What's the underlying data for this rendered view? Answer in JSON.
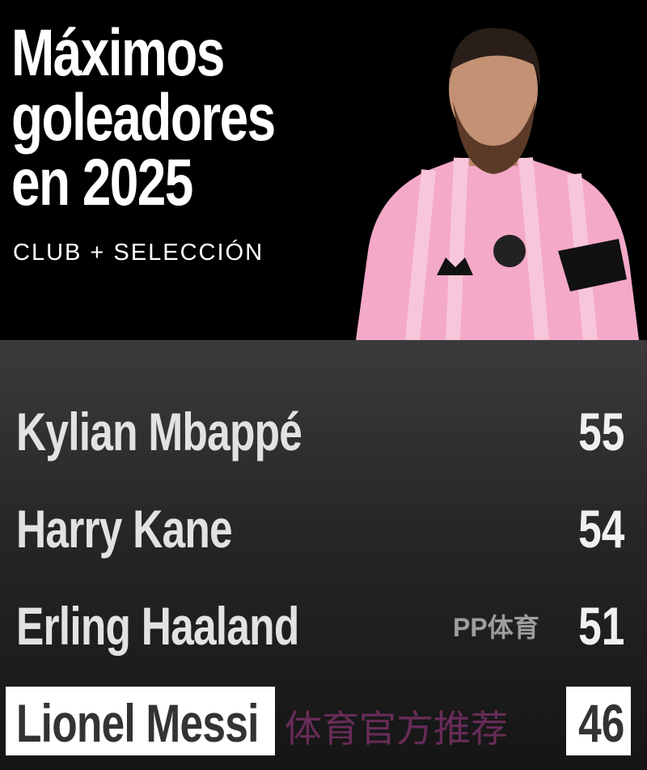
{
  "header": {
    "title_lines": [
      "Máximos",
      "goleadores",
      "en 2025"
    ],
    "subtitle": "CLUB + SELECCIÓN"
  },
  "photo": {
    "shirt_color": "#f4a9c8",
    "icon": "player-photo"
  },
  "ranking": [
    {
      "name": "Kylian Mbappé",
      "goals": "55"
    },
    {
      "name": "Harry Kane",
      "goals": "54"
    },
    {
      "name": "Erling Haaland",
      "goals": "51"
    },
    {
      "name": "Lionel Messi",
      "goals": "46",
      "highlighted": true
    }
  ],
  "watermark": {
    "text": "体育官方推荐",
    "logo": "PP体育"
  }
}
